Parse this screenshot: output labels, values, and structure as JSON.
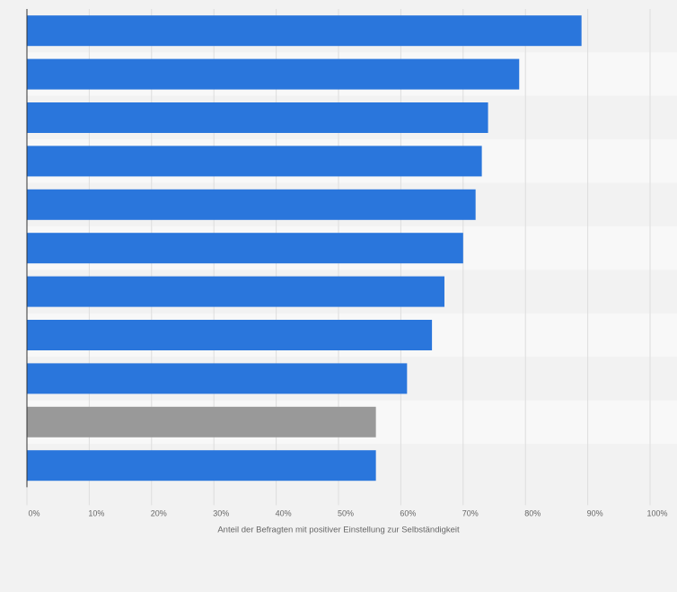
{
  "chart_data": {
    "type": "bar",
    "orientation": "horizontal",
    "categories": [
      "",
      "",
      "",
      "",
      "",
      "",
      "",
      "",
      "",
      "",
      ""
    ],
    "values": [
      89,
      79,
      74,
      73,
      72,
      70,
      67,
      65,
      61,
      56,
      56
    ],
    "highlight_index": 9,
    "title": "",
    "xlabel": "Anteil der Befragten mit positiver Einstellung zur Selbständigkeit",
    "ylabel": "",
    "xlim": [
      0,
      100
    ],
    "x_ticks": [
      "0%",
      "10%",
      "20%",
      "30%",
      "40%",
      "50%",
      "60%",
      "70%",
      "80%",
      "90%",
      "100%"
    ],
    "grid": "vertical",
    "legend": "none",
    "colors": {
      "bar": "#2a76dc",
      "highlight": "#999999",
      "band_light": "#f8f8f8",
      "band_dark": "#f2f2f2",
      "grid": "#dddddd",
      "axis": "#333333"
    }
  }
}
